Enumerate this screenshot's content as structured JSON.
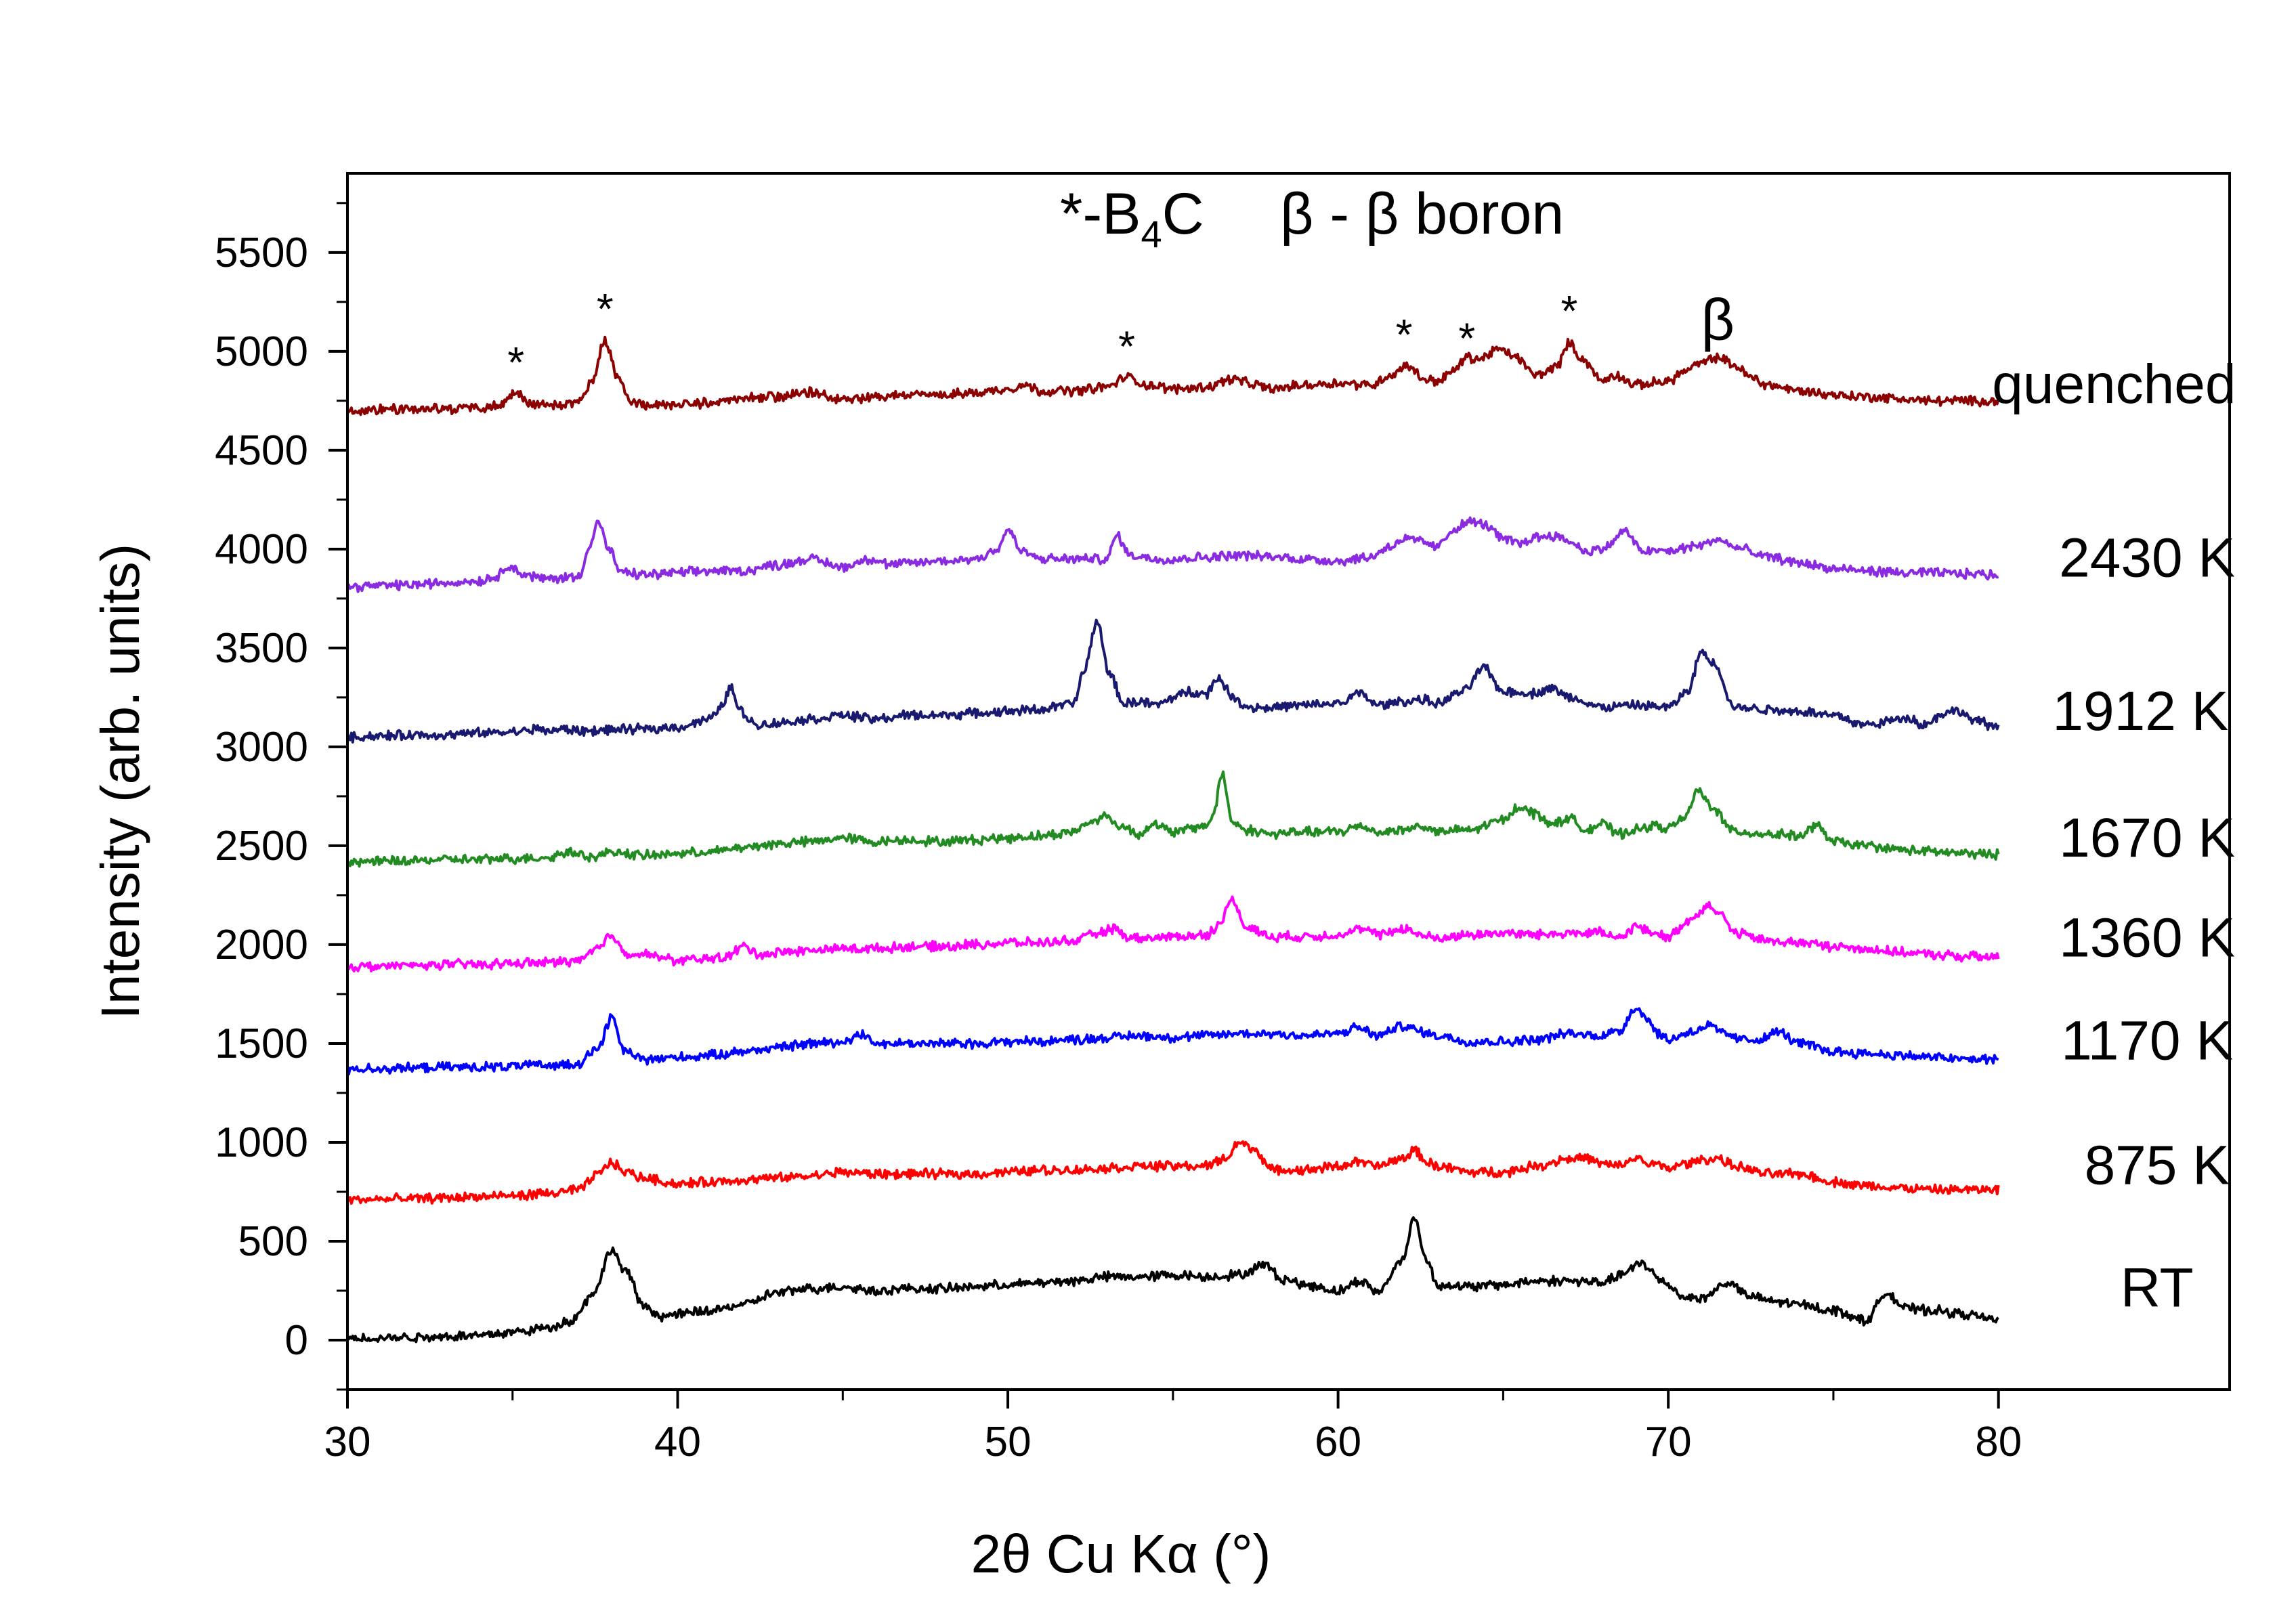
{
  "chart_data": {
    "type": "line",
    "title": "",
    "xlabel": "2θ Cu Kα (°)",
    "ylabel": "Intensity (arb. units)",
    "xlim": [
      30,
      87
    ],
    "ylim": [
      -250,
      5900
    ],
    "xticks": [
      "30",
      "40",
      "50",
      "60",
      "70",
      "80"
    ],
    "yticks": [
      "0",
      "500",
      "1000",
      "1500",
      "2000",
      "2500",
      "3000",
      "3500",
      "4000",
      "4500",
      "5000",
      "5500"
    ],
    "legend": {
      "text_parts": [
        "*-B",
        "4",
        "C",
        "β - β boron"
      ],
      "placement": "top-center"
    },
    "annotations": [
      {
        "text": "*",
        "x": 35.1,
        "y": 4870
      },
      {
        "text": "*",
        "x": 37.8,
        "y": 5140
      },
      {
        "text": "*",
        "x": 53.6,
        "y": 4950
      },
      {
        "text": "*",
        "x": 62.0,
        "y": 5010
      },
      {
        "text": "*",
        "x": 63.9,
        "y": 4990
      },
      {
        "text": "*",
        "x": 67.0,
        "y": 5130
      },
      {
        "text": "β",
        "x": 71.5,
        "y": 5060
      }
    ],
    "series": [
      {
        "name": "quenched",
        "color": "#8b0000",
        "label_x": 83.5,
        "label_y": 4740,
        "x": [
          30,
          31,
          32,
          33,
          34,
          34.6,
          35.1,
          35.5,
          36,
          37,
          37.4,
          37.8,
          38.2,
          38.6,
          39,
          40,
          41,
          42,
          43,
          44,
          45,
          46,
          47,
          48,
          49,
          50,
          50.5,
          51,
          52,
          53,
          53.6,
          54.2,
          55,
          56,
          56.8,
          57.5,
          58,
          59,
          60,
          61,
          61.6,
          62.1,
          62.6,
          63,
          63.5,
          63.9,
          64.3,
          64.8,
          65.3,
          66,
          66.6,
          67,
          67.4,
          68,
          68.4,
          69,
          70,
          70.5,
          71,
          71.5,
          72,
          72.5,
          73,
          74,
          75,
          76,
          77,
          78,
          79,
          80
        ],
        "values": [
          4700,
          4705,
          4710,
          4710,
          4715,
          4730,
          4790,
          4740,
          4730,
          4740,
          4850,
          5050,
          4860,
          4740,
          4730,
          4730,
          4740,
          4760,
          4770,
          4790,
          4760,
          4770,
          4780,
          4780,
          4790,
          4810,
          4830,
          4800,
          4800,
          4820,
          4870,
          4830,
          4810,
          4820,
          4860,
          4830,
          4810,
          4830,
          4840,
          4830,
          4880,
          4930,
          4860,
          4850,
          4900,
          4970,
          4960,
          5010,
          4980,
          4880,
          4920,
          5040,
          4960,
          4850,
          4880,
          4830,
          4850,
          4900,
          4940,
          4970,
          4930,
          4870,
          4830,
          4800,
          4780,
          4770,
          4760,
          4750,
          4750,
          4750
        ]
      },
      {
        "name": "2430 K",
        "color": "#8a2be2",
        "label_x": 84.5,
        "label_y": 3860,
        "x": [
          30,
          31,
          32,
          33,
          34,
          34.5,
          34.9,
          35.3,
          36,
          37,
          37.3,
          37.6,
          37.9,
          38.3,
          39,
          40,
          41,
          42,
          43,
          44,
          45,
          45.8,
          46.5,
          47,
          48,
          49,
          49.7,
          50,
          50.4,
          51,
          52,
          53,
          53.3,
          53.7,
          54.5,
          55,
          56,
          57,
          58,
          59,
          60,
          61,
          61.5,
          62,
          62.5,
          63,
          63.5,
          64,
          64.5,
          65,
          65.5,
          66,
          66.5,
          67,
          67.5,
          68,
          68.7,
          69.2,
          70,
          71,
          71.5,
          72,
          73,
          74,
          75,
          76,
          77,
          78,
          79,
          80
        ],
        "values": [
          3810,
          3815,
          3820,
          3830,
          3840,
          3860,
          3920,
          3870,
          3850,
          3860,
          4000,
          4140,
          4000,
          3880,
          3870,
          3880,
          3890,
          3890,
          3920,
          3950,
          3910,
          3950,
          3920,
          3930,
          3940,
          3950,
          4000,
          4100,
          3990,
          3950,
          3950,
          3950,
          4070,
          3970,
          3950,
          3950,
          3960,
          3970,
          3960,
          3950,
          3940,
          3960,
          4010,
          4050,
          4040,
          4010,
          4100,
          4140,
          4120,
          4050,
          4030,
          4060,
          4070,
          4040,
          3990,
          4000,
          4090,
          3990,
          3990,
          4020,
          4050,
          4010,
          3960,
          3930,
          3900,
          3890,
          3880,
          3880,
          3875,
          3870
        ]
      },
      {
        "name": "1912 K",
        "color": "#191970",
        "label_x": 84.3,
        "label_y": 3085,
        "x": [
          30,
          31,
          32,
          33,
          34,
          35,
          35.8,
          36.2,
          36.6,
          37,
          38,
          39,
          40,
          41,
          41.3,
          41.6,
          41.9,
          42.4,
          43,
          44,
          45,
          46,
          47,
          48,
          49,
          50,
          51,
          52,
          52.3,
          52.7,
          53.1,
          53.5,
          54,
          54.5,
          55,
          55.5,
          56,
          56.4,
          56.8,
          57.3,
          58,
          59,
          60,
          60.7,
          61.2,
          62,
          62.5,
          63,
          63.8,
          64.4,
          65,
          66,
          66.4,
          67,
          68,
          69,
          70,
          70.6,
          71,
          71.4,
          72,
          73,
          74,
          75,
          76,
          76.7,
          77.2,
          77.8,
          78.3,
          78.8,
          79.3,
          80
        ],
        "values": [
          3050,
          3055,
          3060,
          3060,
          3070,
          3075,
          3090,
          3080,
          3090,
          3080,
          3085,
          3090,
          3100,
          3140,
          3200,
          3300,
          3180,
          3110,
          3120,
          3140,
          3160,
          3140,
          3160,
          3160,
          3170,
          3180,
          3190,
          3220,
          3380,
          3630,
          3360,
          3220,
          3230,
          3210,
          3250,
          3280,
          3270,
          3350,
          3250,
          3200,
          3200,
          3210,
          3220,
          3270,
          3210,
          3230,
          3240,
          3220,
          3280,
          3400,
          3280,
          3270,
          3300,
          3250,
          3200,
          3210,
          3200,
          3280,
          3480,
          3420,
          3200,
          3190,
          3180,
          3160,
          3110,
          3130,
          3150,
          3110,
          3170,
          3180,
          3130,
          3100
        ]
      },
      {
        "name": "1670 K",
        "color": "#228b22",
        "label_x": 84.5,
        "label_y": 2445,
        "x": [
          30,
          31,
          32,
          33,
          34,
          35,
          36,
          36.8,
          37.5,
          38,
          39,
          40,
          41,
          42,
          43,
          44,
          45,
          46,
          47,
          48,
          49,
          50,
          51,
          52,
          52.5,
          52.9,
          53.4,
          54,
          54.4,
          55,
          56,
          56.2,
          56.5,
          56.8,
          57.2,
          58,
          59,
          60,
          60.7,
          61.2,
          62,
          62.5,
          63,
          64,
          65,
          65.5,
          66,
          66.5,
          67,
          67.5,
          68,
          68.5,
          69,
          69.5,
          70,
          70.5,
          70.9,
          71.3,
          72,
          73,
          74,
          74.5,
          75,
          76,
          77,
          78,
          79,
          80
        ],
        "values": [
          2420,
          2420,
          2425,
          2430,
          2430,
          2435,
          2440,
          2470,
          2440,
          2470,
          2450,
          2460,
          2470,
          2490,
          2510,
          2520,
          2540,
          2520,
          2530,
          2520,
          2530,
          2540,
          2550,
          2570,
          2620,
          2650,
          2600,
          2560,
          2610,
          2570,
          2600,
          2650,
          2860,
          2620,
          2580,
          2560,
          2570,
          2570,
          2600,
          2570,
          2580,
          2600,
          2570,
          2580,
          2630,
          2700,
          2660,
          2610,
          2640,
          2580,
          2610,
          2560,
          2580,
          2600,
          2590,
          2640,
          2780,
          2700,
          2570,
          2560,
          2550,
          2600,
          2520,
          2500,
          2480,
          2470,
          2460,
          2455
        ]
      },
      {
        "name": "1360 K",
        "color": "#ff00ff",
        "label_x": 84.5,
        "label_y": 1940,
        "x": [
          30,
          31,
          32,
          33,
          34,
          35,
          36,
          37,
          37.6,
          38,
          38.4,
          39,
          40,
          41,
          41.5,
          42,
          42.5,
          43,
          44,
          45,
          46,
          47,
          48,
          49,
          50,
          51,
          52,
          52.8,
          53.2,
          53.6,
          54,
          55,
          56,
          56.4,
          56.8,
          57.2,
          58,
          59,
          60,
          60.7,
          61.2,
          62,
          62.5,
          63,
          64,
          65,
          66,
          67,
          68,
          68.5,
          69,
          69.5,
          70,
          70.7,
          71.2,
          71.6,
          72,
          73,
          74,
          75,
          76,
          77,
          78,
          79,
          80
        ],
        "values": [
          1890,
          1890,
          1895,
          1900,
          1900,
          1905,
          1910,
          1920,
          1980,
          2050,
          1960,
          1950,
          1920,
          1930,
          1940,
          1990,
          1950,
          1960,
          1970,
          1980,
          1980,
          1990,
          1990,
          2000,
          2010,
          2010,
          2020,
          2060,
          2080,
          2040,
          2030,
          2040,
          2050,
          2100,
          2230,
          2090,
          2040,
          2040,
          2050,
          2080,
          2050,
          2080,
          2050,
          2030,
          2050,
          2060,
          2050,
          2060,
          2060,
          2030,
          2090,
          2060,
          2040,
          2130,
          2200,
          2150,
          2060,
          2020,
          2010,
          1990,
          1980,
          1960,
          1950,
          1940,
          1935
        ]
      },
      {
        "name": "1170 K",
        "color": "#0000ff",
        "label_x": 84.5,
        "label_y": 1420,
        "x": [
          30,
          31,
          32,
          33,
          34,
          35,
          36,
          37,
          37.6,
          38,
          38.4,
          39,
          40,
          41,
          42,
          43,
          44,
          45,
          45.6,
          46,
          47,
          48,
          49,
          50,
          51,
          52,
          53,
          54,
          55,
          56,
          57,
          58,
          59,
          60,
          60.6,
          61.2,
          62,
          62.5,
          63,
          64,
          65,
          66,
          67,
          67.8,
          68.5,
          69,
          69.3,
          69.7,
          70,
          70.7,
          71.2,
          71.7,
          72.2,
          72.8,
          73.3,
          74,
          75,
          76,
          77,
          78,
          79,
          80
        ],
        "values": [
          1370,
          1375,
          1375,
          1380,
          1380,
          1385,
          1390,
          1400,
          1480,
          1630,
          1460,
          1420,
          1430,
          1440,
          1460,
          1480,
          1500,
          1510,
          1550,
          1500,
          1500,
          1500,
          1500,
          1510,
          1510,
          1520,
          1530,
          1540,
          1530,
          1540,
          1550,
          1550,
          1540,
          1550,
          1580,
          1540,
          1590,
          1560,
          1540,
          1510,
          1510,
          1520,
          1550,
          1540,
          1560,
          1680,
          1640,
          1550,
          1520,
          1560,
          1590,
          1550,
          1520,
          1520,
          1560,
          1500,
          1460,
          1450,
          1440,
          1430,
          1420,
          1420
        ]
      },
      {
        "name": "875 K",
        "color": "#ff0000",
        "label_x": 84.8,
        "label_y": 790,
        "x": [
          30,
          31,
          32,
          33,
          34,
          35,
          36,
          37,
          37.6,
          38,
          38.4,
          39,
          40,
          41,
          42,
          43,
          44,
          45,
          46,
          47,
          48,
          49,
          50,
          51,
          52,
          53,
          54,
          55,
          56,
          56.6,
          57,
          57.5,
          58,
          59,
          60,
          60.6,
          61.2,
          62,
          62.3,
          62.7,
          63,
          64,
          65,
          66,
          67,
          67.5,
          68,
          68.5,
          69,
          69.5,
          70,
          70.5,
          71,
          71.5,
          72,
          73,
          74,
          75,
          76,
          77,
          78,
          79,
          80
        ],
        "values": [
          710,
          712,
          715,
          720,
          725,
          730,
          740,
          760,
          840,
          900,
          850,
          820,
          790,
          800,
          810,
          820,
          830,
          850,
          840,
          840,
          840,
          840,
          850,
          860,
          860,
          870,
          880,
          880,
          880,
          920,
          1000,
          960,
          860,
          860,
          880,
          900,
          880,
          920,
          960,
          900,
          880,
          850,
          850,
          880,
          920,
          920,
          890,
          880,
          920,
          890,
          870,
          890,
          910,
          920,
          880,
          840,
          840,
          800,
          780,
          770,
          760,
          760,
          760
        ]
      },
      {
        "name": "RT",
        "color": "#000000",
        "label_x": 84.8,
        "label_y": 170,
        "x": [
          30,
          31,
          32,
          33,
          34,
          35,
          36,
          36.8,
          37.5,
          38,
          38.4,
          39,
          39.5,
          40,
          41,
          42,
          43,
          44,
          45,
          46,
          47,
          48,
          49,
          50,
          51,
          52,
          53,
          54,
          55,
          56,
          57,
          57.8,
          58.3,
          59,
          60,
          60.7,
          61.2,
          62,
          62.3,
          62.7,
          63,
          64,
          65,
          66,
          67,
          68,
          68.7,
          69.2,
          69.8,
          70.5,
          71,
          71.8,
          72.5,
          73,
          74,
          75,
          76,
          76.6,
          77.2,
          78,
          79,
          80
        ],
        "values": [
          10,
          12,
          15,
          20,
          25,
          40,
          60,
          100,
          250,
          460,
          350,
          170,
          120,
          130,
          150,
          180,
          240,
          260,
          270,
          250,
          260,
          260,
          270,
          280,
          290,
          300,
          320,
          320,
          330,
          320,
          330,
          380,
          310,
          280,
          250,
          300,
          240,
          420,
          620,
          400,
          280,
          270,
          280,
          300,
          300,
          290,
          340,
          390,
          300,
          220,
          210,
          290,
          220,
          200,
          180,
          150,
          100,
          240,
          160,
          150,
          130,
          100
        ]
      }
    ]
  }
}
